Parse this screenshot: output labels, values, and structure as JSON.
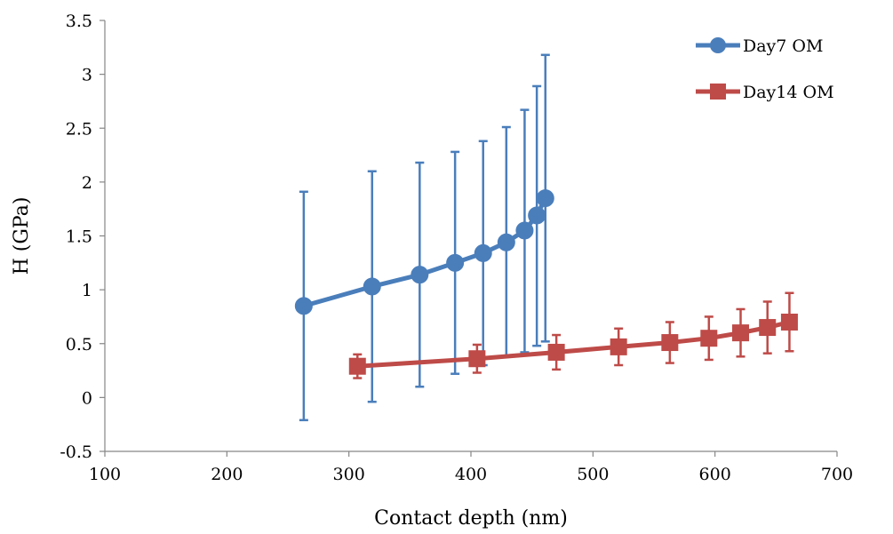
{
  "chart_data": {
    "type": "scatter",
    "xlabel": "Contact depth (nm)",
    "ylabel": "H (GPa)",
    "xlim": [
      100,
      700
    ],
    "ylim": [
      -0.5,
      3.5
    ],
    "x_ticks": [
      100,
      200,
      300,
      400,
      500,
      600,
      700
    ],
    "y_ticks": [
      -0.5,
      0,
      0.5,
      1,
      1.5,
      2,
      2.5,
      3,
      3.5
    ],
    "x_tick_labels": [
      "100",
      "200",
      "300",
      "400",
      "500",
      "600",
      "700"
    ],
    "y_tick_labels": [
      "-0.5",
      "0",
      "0.5",
      "1",
      "1.5",
      "2",
      "2.5",
      "3",
      "3.5"
    ],
    "grid": false,
    "legend_position": "top-right",
    "series": [
      {
        "name": "Day7 OM",
        "color": "#4a7ebb",
        "marker": "circle",
        "x": [
          263,
          319,
          358,
          387,
          410,
          429,
          444,
          454,
          461
        ],
        "y": [
          0.85,
          1.03,
          1.14,
          1.25,
          1.34,
          1.44,
          1.55,
          1.69,
          1.85
        ],
        "err_low": [
          -0.21,
          -0.04,
          0.1,
          0.22,
          0.3,
          0.38,
          0.42,
          0.48,
          0.52
        ],
        "err_high": [
          1.91,
          2.1,
          2.18,
          2.28,
          2.38,
          2.51,
          2.67,
          2.89,
          3.18
        ]
      },
      {
        "name": "Day14 OM",
        "color": "#be4b48",
        "marker": "square",
        "x": [
          307,
          405,
          470,
          521,
          563,
          595,
          621,
          643,
          661
        ],
        "y": [
          0.29,
          0.36,
          0.42,
          0.47,
          0.51,
          0.55,
          0.6,
          0.65,
          0.7
        ],
        "err_low": [
          0.18,
          0.23,
          0.26,
          0.3,
          0.32,
          0.35,
          0.38,
          0.41,
          0.43
        ],
        "err_high": [
          0.4,
          0.49,
          0.58,
          0.64,
          0.7,
          0.75,
          0.82,
          0.89,
          0.97
        ]
      }
    ]
  }
}
